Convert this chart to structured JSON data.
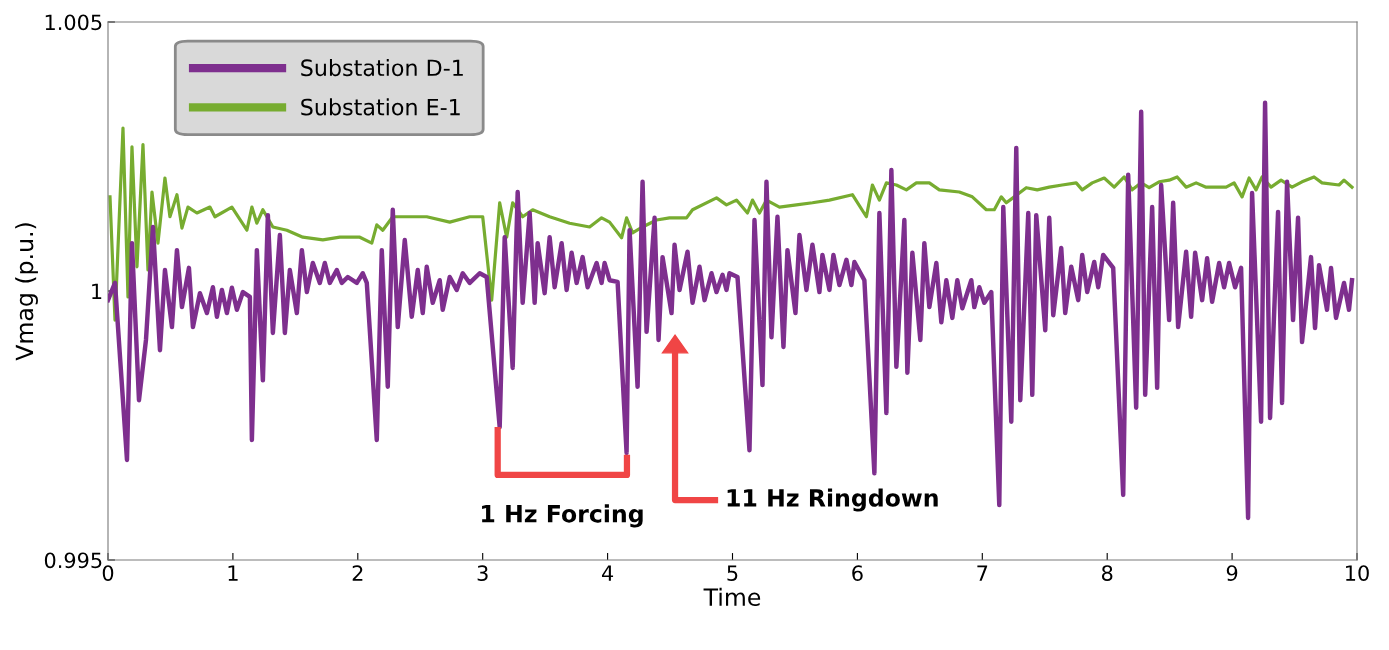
{
  "chart_data": {
    "type": "line",
    "xlabel": "Time",
    "ylabel": "Vmag (p.u.)",
    "xlim": [
      0,
      10
    ],
    "ylim": [
      0.995,
      1.005
    ],
    "xticks": [
      0,
      1,
      2,
      3,
      4,
      5,
      6,
      7,
      8,
      9,
      10
    ],
    "yticks": [
      0.995,
      1,
      1.005
    ],
    "grid": false,
    "legend": "top left",
    "line_style": "solid",
    "marker": "none",
    "annotations": [
      "1 Hz Forcing",
      "11 Hz Ringdown"
    ],
    "series": [
      {
        "name": "Substation D-1",
        "color": "#7e2f8e",
        "x": [
          0,
          0.056,
          0.152,
          0.192,
          0.248,
          0.304,
          0.36,
          0.416,
          0.456,
          0.512,
          0.552,
          0.592,
          0.648,
          0.68,
          0.736,
          0.792,
          0.84,
          0.872,
          0.912,
          0.952,
          0.992,
          1.032,
          1.08,
          1.136,
          1.152,
          1.192,
          1.24,
          1.28,
          1.32,
          1.376,
          1.416,
          1.456,
          1.512,
          1.552,
          1.592,
          1.64,
          1.696,
          1.736,
          1.776,
          1.832,
          1.872,
          1.92,
          1.992,
          2.04,
          2.072,
          2.152,
          2.192,
          2.24,
          2.28,
          2.32,
          2.376,
          2.432,
          2.48,
          2.52,
          2.552,
          2.6,
          2.656,
          2.68,
          2.736,
          2.792,
          2.84,
          2.896,
          2.976,
          3.032,
          3.136,
          3.176,
          3.24,
          3.28,
          3.32,
          3.376,
          3.416,
          3.44,
          3.496,
          3.536,
          3.576,
          3.632,
          3.672,
          3.712,
          3.752,
          3.8,
          3.84,
          3.912,
          3.952,
          3.976,
          4.016,
          4.08,
          4.152,
          4.176,
          4.24,
          4.28,
          4.312,
          4.376,
          4.408,
          4.44,
          4.512,
          4.536,
          4.576,
          4.64,
          4.68,
          4.736,
          4.776,
          4.832,
          4.872,
          4.92,
          4.952,
          4.976,
          5.04,
          5.136,
          5.176,
          5.24,
          5.272,
          5.312,
          5.36,
          5.408,
          5.44,
          5.504,
          5.536,
          5.592,
          5.64,
          5.696,
          5.72,
          5.776,
          5.808,
          5.856,
          5.912,
          5.952,
          5.976,
          6.056,
          6.136,
          6.176,
          6.232,
          6.272,
          6.312,
          6.376,
          6.4,
          6.44,
          6.504,
          6.536,
          6.576,
          6.632,
          6.672,
          6.712,
          6.76,
          6.8,
          6.84,
          6.912,
          6.936,
          6.976,
          7.016,
          7.072,
          7.136,
          7.168,
          7.232,
          7.272,
          7.304,
          7.368,
          7.4,
          7.432,
          7.504,
          7.536,
          7.568,
          7.632,
          7.664,
          7.712,
          7.768,
          7.8,
          7.84,
          7.896,
          7.928,
          7.968,
          8.048,
          8.128,
          8.168,
          8.232,
          8.272,
          8.304,
          8.36,
          8.4,
          8.432,
          8.496,
          8.528,
          8.568,
          8.632,
          8.672,
          8.704,
          8.76,
          8.8,
          8.84,
          8.896,
          8.936,
          8.976,
          9.024,
          9.072,
          9.128,
          9.16,
          9.232,
          9.264,
          9.304,
          9.368,
          9.4,
          9.44,
          9.488,
          9.528,
          9.56,
          9.632,
          9.664,
          9.696,
          9.76,
          9.792,
          9.832,
          9.896,
          9.936,
          9.96
        ],
        "values": [
          0.99983,
          1.00015,
          0.99686,
          1.00089,
          0.99797,
          0.99909,
          1.00119,
          0.9989,
          1.00039,
          0.99933,
          1.00076,
          0.9997,
          1.00043,
          0.99933,
          0.99996,
          0.99959,
          1.00007,
          0.99952,
          1.00002,
          0.99959,
          1.00006,
          0.99965,
          0.99998,
          0.99989,
          0.99723,
          1.00076,
          0.99834,
          1.00141,
          0.99922,
          1.00104,
          0.99922,
          1.00039,
          0.99959,
          1.00076,
          0.99998,
          1.00052,
          1.00015,
          1.00052,
          1.00015,
          1.00039,
          1.00015,
          1.00026,
          1.00015,
          1.00033,
          1.00015,
          0.99723,
          1.00076,
          0.99822,
          1.00151,
          0.99933,
          1.00095,
          0.99952,
          1.00039,
          0.99959,
          1.00045,
          0.99978,
          1.0002,
          0.99965,
          1.00026,
          1.00002,
          1.00033,
          1.00015,
          1.00033,
          1.00026,
          0.99747,
          1.001,
          0.99857,
          1.00184,
          0.99978,
          1.00145,
          0.99978,
          1.00089,
          0.99996,
          1.001,
          1.00007,
          1.00089,
          1.00002,
          1.00071,
          1.00015,
          1.00063,
          1.00007,
          1.00052,
          1.00015,
          1.00052,
          1.0002,
          1.00017,
          0.99699,
          1.00113,
          0.99822,
          1.00203,
          0.99924,
          1.00136,
          0.99909,
          1.00063,
          0.99959,
          1.00086,
          1.00002,
          1.00073,
          0.99978,
          1.00045,
          0.99983,
          1.00033,
          0.99998,
          1.0003,
          1.00002,
          1.00033,
          1.00026,
          0.99704,
          1.00132,
          0.99825,
          1.00203,
          0.99914,
          1.00138,
          0.99896,
          1.00076,
          0.99959,
          1.00104,
          1.00002,
          1.00086,
          0.99998,
          1.00067,
          1.00002,
          1.00067,
          1.00011,
          1.00058,
          1.00011,
          1.00054,
          1.0002,
          0.99661,
          1.00145,
          0.99773,
          1.00225,
          0.99859,
          1.00132,
          0.99848,
          1.00071,
          0.99909,
          1.00089,
          0.9997,
          1.00052,
          0.99942,
          1.0002,
          0.9995,
          1.0002,
          0.99968,
          1.0002,
          0.9997,
          1.00007,
          0.99978,
          0.99998,
          0.99602,
          1.00156,
          0.99757,
          1.00266,
          0.99797,
          1.00145,
          0.99807,
          1.00141,
          0.99927,
          1.00136,
          0.99955,
          1.0008,
          0.99959,
          1.00045,
          0.99983,
          1.00067,
          0.99998,
          1.00054,
          1.00007,
          1.00067,
          1.00043,
          0.99621,
          1.00216,
          0.99783,
          1.00333,
          0.99807,
          1.00156,
          0.9982,
          1.00197,
          0.99946,
          1.00164,
          0.99933,
          1.00073,
          0.99952,
          1.00071,
          0.99983,
          1.00061,
          0.9998,
          1.00052,
          1.00007,
          1.00052,
          1.00007,
          1.00043,
          0.99578,
          1.00182,
          0.99757,
          1.0035,
          0.99764,
          1.00147,
          0.99792,
          1.00203,
          0.99946,
          1.00136,
          0.99905,
          1.00063,
          0.99931,
          1.00048,
          0.99965,
          1.00043,
          0.9995,
          1.00015,
          0.99965,
          1.0002
        ]
      },
      {
        "name": "Substation E-1",
        "color": "#77ac30",
        "x": [
          0.016,
          0.056,
          0.12,
          0.16,
          0.192,
          0.232,
          0.28,
          0.32,
          0.352,
          0.4,
          0.456,
          0.496,
          0.552,
          0.592,
          0.64,
          0.712,
          0.816,
          0.856,
          0.992,
          1.112,
          1.152,
          1.192,
          1.24,
          1.32,
          1.432,
          1.56,
          1.72,
          1.856,
          2.016,
          2.112,
          2.152,
          2.2,
          2.28,
          2.392,
          2.552,
          2.736,
          2.896,
          3.0,
          3.072,
          3.136,
          3.192,
          3.24,
          3.32,
          3.4,
          3.536,
          3.696,
          3.856,
          3.952,
          4.016,
          4.112,
          4.152,
          4.2,
          4.28,
          4.392,
          4.496,
          4.632,
          4.68,
          4.872,
          4.952,
          5.032,
          5.12,
          5.16,
          5.216,
          5.272,
          5.376,
          5.512,
          5.64,
          5.776,
          5.96,
          6.072,
          6.12,
          6.176,
          6.232,
          6.312,
          6.392,
          6.472,
          6.576,
          6.656,
          6.816,
          6.92,
          7.032,
          7.096,
          7.152,
          7.192,
          7.256,
          7.352,
          7.44,
          7.536,
          7.64,
          7.752,
          7.8,
          7.88,
          7.976,
          8.056,
          8.136,
          8.2,
          8.272,
          8.336,
          8.416,
          8.496,
          8.56,
          8.632,
          8.712,
          8.792,
          8.952,
          9.016,
          9.08,
          9.136,
          9.192,
          9.24,
          9.312,
          9.392,
          9.48,
          9.56,
          9.656,
          9.72,
          9.856,
          9.896,
          9.96
        ],
        "values": [
          1.00175,
          0.99946,
          1.00303,
          0.99989,
          1.00268,
          1.00045,
          1.00272,
          1.00039,
          1.00184,
          1.00089,
          1.0021,
          1.00138,
          1.00179,
          1.00117,
          1.00156,
          1.00145,
          1.00156,
          1.00138,
          1.00156,
          1.00113,
          1.00156,
          1.00126,
          1.00151,
          1.00119,
          1.00113,
          1.001,
          1.00095,
          1.001,
          1.001,
          1.00089,
          1.00123,
          1.00113,
          1.00138,
          1.00138,
          1.00138,
          1.00128,
          1.00138,
          1.00138,
          0.99983,
          1.00164,
          1.001,
          1.00164,
          1.00138,
          1.00151,
          1.00138,
          1.00126,
          1.00119,
          1.00136,
          1.00128,
          1.00099,
          1.00136,
          1.00108,
          1.00119,
          1.00132,
          1.00136,
          1.00136,
          1.00151,
          1.00173,
          1.0016,
          1.00169,
          1.00145,
          1.00169,
          1.00145,
          1.00169,
          1.00156,
          1.0016,
          1.00164,
          1.00169,
          1.00179,
          1.00138,
          1.00197,
          1.00169,
          1.00201,
          1.00197,
          1.00188,
          1.00201,
          1.00201,
          1.00188,
          1.00184,
          1.00175,
          1.00151,
          1.00151,
          1.00175,
          1.00164,
          1.00175,
          1.00192,
          1.00188,
          1.00193,
          1.00197,
          1.00201,
          1.00188,
          1.00201,
          1.0021,
          1.00193,
          1.00212,
          1.00188,
          1.00201,
          1.00192,
          1.00203,
          1.00206,
          1.00212,
          1.00193,
          1.00201,
          1.00193,
          1.00193,
          1.00201,
          1.00175,
          1.0021,
          1.00188,
          1.00212,
          1.00193,
          1.00206,
          1.00193,
          1.00203,
          1.00212,
          1.00201,
          1.00197,
          1.00206,
          1.00193
        ]
      }
    ]
  }
}
